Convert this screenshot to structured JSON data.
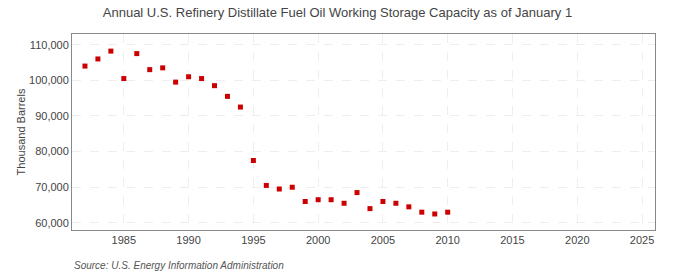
{
  "chart_data": {
    "type": "scatter",
    "title": "Annual U.S. Refinery Distillate Fuel Oil Working Storage Capacity as of January 1",
    "ylabel": "Thousand Barrels",
    "annotations": [
      "Source: U.S. Energy Information Administration"
    ],
    "x": [
      1982,
      1983,
      1984,
      1985,
      1986,
      1987,
      1988,
      1989,
      1990,
      1991,
      1992,
      1993,
      1994,
      1995,
      1996,
      1997,
      1998,
      1999,
      2000,
      2001,
      2002,
      2003,
      2004,
      2005,
      2006,
      2007,
      2008,
      2009,
      2010
    ],
    "values": [
      104000,
      106000,
      108200,
      100500,
      107500,
      103000,
      103500,
      99500,
      101000,
      100500,
      98500,
      95500,
      92500,
      77500,
      70500,
      69500,
      70000,
      66000,
      66500,
      66500,
      65500,
      68500,
      64000,
      66000,
      65500,
      64500,
      63000,
      62500,
      63000
    ],
    "color": "#cc0000",
    "marker": "square",
    "xlim": [
      1981,
      2026
    ],
    "xticks": [
      1985,
      1990,
      1995,
      2000,
      2005,
      2010,
      2015,
      2020,
      2025
    ],
    "ylim": [
      58000,
      113000
    ],
    "yticks": [
      {
        "value": 60000,
        "label": "60,000"
      },
      {
        "value": 70000,
        "label": "70,000"
      },
      {
        "value": 80000,
        "label": "80,000"
      },
      {
        "value": 90000,
        "label": "90,000"
      },
      {
        "value": 100000,
        "label": "100,000"
      },
      {
        "value": 110000,
        "label": "110,000"
      }
    ],
    "grid": true
  }
}
